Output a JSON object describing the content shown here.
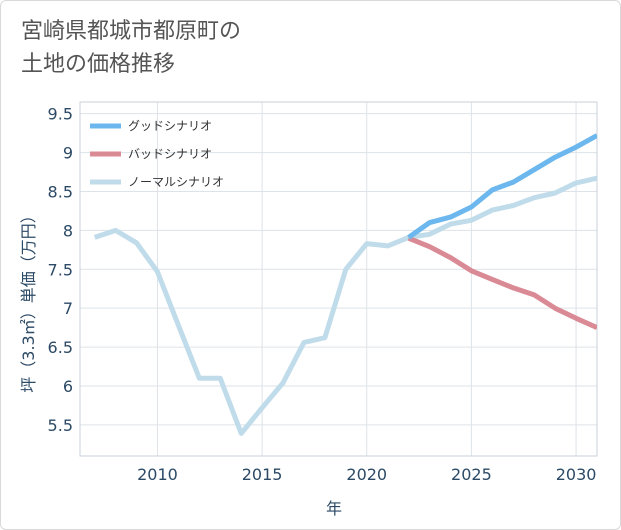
{
  "title": "宮崎県都城市都原町の\n土地の価格推移",
  "colors": {
    "good": "#6cb8ee",
    "bad": "#da8a95",
    "normal": "#c0dcea",
    "grid": "#dde3e8",
    "axis": "#2c4a66"
  },
  "chart_data": {
    "type": "line",
    "title": "宮崎県都城市都原町の 土地の価格推移",
    "xlabel": "年",
    "ylabel": "坪（3.3㎡）単価（万円）",
    "xlim": [
      2006.3,
      2031
    ],
    "ylim": [
      5.1,
      9.65
    ],
    "xticks": [
      2010,
      2015,
      2020,
      2025,
      2030
    ],
    "yticks": [
      5.5,
      6,
      6.5,
      7,
      7.5,
      8,
      8.5,
      9,
      9.5
    ],
    "ytick_labels": [
      "5.5",
      "6",
      "6.5",
      "7",
      "7.5",
      "8",
      "8.5",
      "9",
      "9.5"
    ],
    "grid": true,
    "legend_position": "top-left",
    "series": [
      {
        "name": "グッドシナリオ",
        "color": "#6cb8ee",
        "x": [
          2022,
          2023,
          2024,
          2025,
          2026,
          2027,
          2028,
          2029,
          2030,
          2031
        ],
        "y": [
          7.91,
          8.1,
          8.17,
          8.3,
          8.52,
          8.62,
          8.78,
          8.94,
          9.07,
          9.22
        ]
      },
      {
        "name": "バッドシナリオ",
        "color": "#da8a95",
        "x": [
          2022,
          2023,
          2024,
          2025,
          2026,
          2027,
          2028,
          2029,
          2030,
          2031
        ],
        "y": [
          7.9,
          7.79,
          7.65,
          7.48,
          7.37,
          7.26,
          7.17,
          7.0,
          6.87,
          6.75
        ]
      },
      {
        "name": "ノーマルシナリオ",
        "color": "#c0dcea",
        "x": [
          2007,
          2008,
          2009,
          2010,
          2011,
          2012,
          2013,
          2014,
          2015,
          2016,
          2017,
          2018,
          2019,
          2020,
          2021,
          2022,
          2023,
          2024,
          2025,
          2026,
          2027,
          2028,
          2029,
          2030,
          2031
        ],
        "y": [
          7.91,
          8.0,
          7.84,
          7.47,
          6.78,
          6.1,
          6.1,
          5.39,
          5.72,
          6.04,
          6.56,
          6.62,
          7.5,
          7.83,
          7.8,
          7.91,
          7.95,
          8.08,
          8.13,
          8.26,
          8.32,
          8.42,
          8.48,
          8.61,
          8.67
        ]
      }
    ]
  }
}
